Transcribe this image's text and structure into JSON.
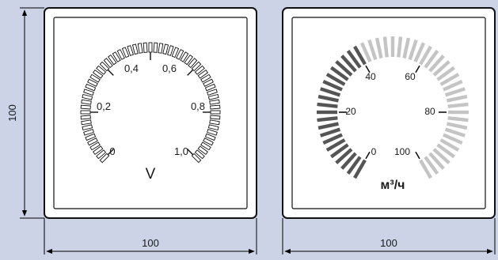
{
  "dimensions": {
    "height": "100",
    "width_left": "100",
    "width_right": "100"
  },
  "voltmeter": {
    "unit": "V",
    "scale_labels": [
      "0",
      "0,2",
      "0,4",
      "0,6",
      "0,8",
      "1,0"
    ],
    "scale_min": 0,
    "scale_max": 1.0
  },
  "flowmeter": {
    "unit": "м³/ч",
    "scale_labels": [
      "0",
      "20",
      "40",
      "60",
      "80",
      "100"
    ],
    "scale_min": 0,
    "scale_max": 100,
    "dark_segment_until": 40,
    "colors": {
      "dark": "#555555",
      "light": "#c4c4c4"
    }
  }
}
